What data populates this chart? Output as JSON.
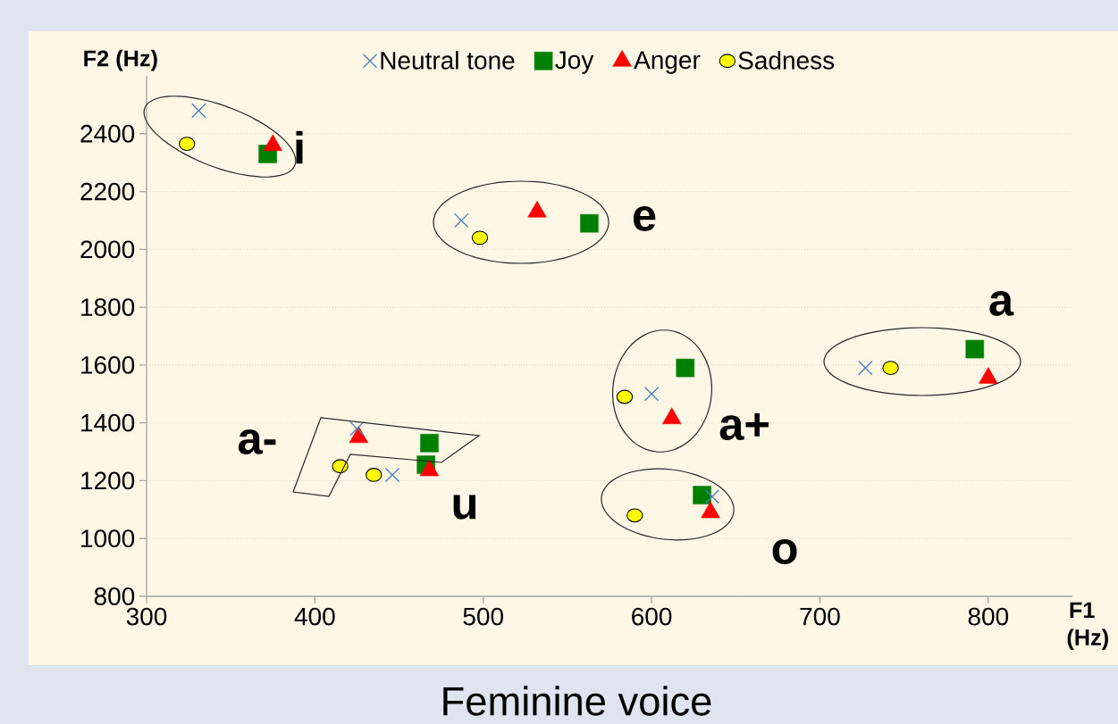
{
  "chart_data": {
    "type": "scatter",
    "title": "Feminine voice",
    "xlabel": "F1 (Hz)",
    "ylabel": "F2 (Hz)",
    "xlim": [
      300,
      850
    ],
    "ylim": [
      800,
      2600
    ],
    "xticks": [
      300,
      400,
      500,
      600,
      700,
      800
    ],
    "yticks": [
      800,
      1000,
      1200,
      1400,
      1600,
      1800,
      2000,
      2200,
      2400
    ],
    "grid": "y",
    "legend": "top",
    "series": [
      {
        "name": "Neutral tone",
        "color": "#4a7ebb",
        "marker": "cross",
        "x": [
          331,
          487,
          600,
          727,
          425,
          446,
          636
        ],
        "values": [
          2480,
          2100,
          1500,
          1590,
          1380,
          1220,
          1145
        ]
      },
      {
        "name": "Joy",
        "color": "#008000",
        "marker": "square",
        "x": [
          372,
          563,
          620,
          792,
          468,
          466,
          630
        ],
        "values": [
          2330,
          2090,
          1590,
          1655,
          1330,
          1255,
          1150
        ]
      },
      {
        "name": "Anger",
        "color": "#ff0000",
        "marker": "triangle",
        "x": [
          375,
          532,
          612,
          800,
          426,
          468,
          635
        ],
        "values": [
          2360,
          2130,
          1415,
          1555,
          1350,
          1235,
          1090
        ]
      },
      {
        "name": "Sadness",
        "color": "#ffff00",
        "marker": "circle",
        "x": [
          324,
          498,
          584,
          742,
          415,
          435,
          590
        ],
        "values": [
          2365,
          2040,
          1490,
          1590,
          1250,
          1220,
          1080
        ]
      }
    ],
    "annotations": [
      "i",
      "e",
      "a",
      "a+",
      "a-",
      "u",
      "o"
    ]
  }
}
